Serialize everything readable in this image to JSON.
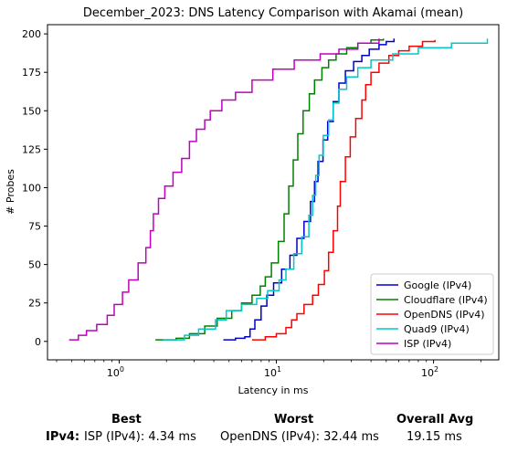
{
  "chart_data": {
    "type": "line",
    "title": "December_2023: DNS Latency Comparison with Akamai (mean)",
    "xlabel": "Latency in ms",
    "ylabel": "# Probes",
    "xscale": "log",
    "xlim": [
      0.35,
      260
    ],
    "ylim": [
      -12,
      206
    ],
    "xticks": [
      {
        "value": 1,
        "label": "10^0"
      },
      {
        "value": 10,
        "label": "10^1"
      },
      {
        "value": 100,
        "label": "10^2"
      }
    ],
    "yticks": [
      0,
      25,
      50,
      75,
      100,
      125,
      150,
      175,
      200
    ],
    "grid": false,
    "legend_position": "lower-right",
    "series": [
      {
        "name": "Google (IPv4)",
        "color": "#0000cc",
        "points": [
          [
            4.6,
            1
          ],
          [
            5.5,
            2
          ],
          [
            6.3,
            3
          ],
          [
            6.8,
            8
          ],
          [
            7.3,
            14
          ],
          [
            8.0,
            23
          ],
          [
            8.7,
            30
          ],
          [
            9.6,
            38
          ],
          [
            10.8,
            47
          ],
          [
            12.2,
            56
          ],
          [
            13.5,
            67
          ],
          [
            15.0,
            78
          ],
          [
            16.5,
            91
          ],
          [
            17.5,
            104
          ],
          [
            18.4,
            117
          ],
          [
            19.8,
            131
          ],
          [
            21.2,
            143
          ],
          [
            23.0,
            156
          ],
          [
            25.0,
            168
          ],
          [
            27.5,
            176
          ],
          [
            31,
            182
          ],
          [
            35,
            186
          ],
          [
            39,
            190
          ],
          [
            45,
            193
          ],
          [
            50,
            195
          ],
          [
            56,
            197
          ]
        ]
      },
      {
        "name": "Cloudflare (IPv4)",
        "color": "#008000",
        "points": [
          [
            1.7,
            1
          ],
          [
            2.3,
            2
          ],
          [
            2.8,
            5
          ],
          [
            3.5,
            10
          ],
          [
            4.2,
            15
          ],
          [
            5.2,
            20
          ],
          [
            6.0,
            25
          ],
          [
            7.0,
            30
          ],
          [
            7.9,
            36
          ],
          [
            8.5,
            42
          ],
          [
            9.3,
            51
          ],
          [
            10.3,
            65
          ],
          [
            11.2,
            83
          ],
          [
            12.0,
            101
          ],
          [
            12.8,
            118
          ],
          [
            13.7,
            135
          ],
          [
            14.8,
            150
          ],
          [
            16.2,
            161
          ],
          [
            17.5,
            170
          ],
          [
            19.5,
            178
          ],
          [
            21.5,
            183
          ],
          [
            24,
            187
          ],
          [
            28,
            191
          ],
          [
            33,
            194
          ],
          [
            40,
            196
          ],
          [
            48,
            197
          ]
        ]
      },
      {
        "name": "OpenDNS (IPv4)",
        "color": "#ff0000",
        "points": [
          [
            7.0,
            1
          ],
          [
            8.5,
            3
          ],
          [
            10.0,
            5
          ],
          [
            11.5,
            9
          ],
          [
            12.5,
            14
          ],
          [
            13.5,
            18
          ],
          [
            15,
            24
          ],
          [
            17,
            30
          ],
          [
            18.5,
            37
          ],
          [
            20.2,
            46
          ],
          [
            21.5,
            58
          ],
          [
            23.0,
            72
          ],
          [
            24.5,
            88
          ],
          [
            25.5,
            104
          ],
          [
            27.5,
            120
          ],
          [
            29.5,
            133
          ],
          [
            32,
            145
          ],
          [
            35,
            157
          ],
          [
            37,
            167
          ],
          [
            40,
            175
          ],
          [
            45,
            181
          ],
          [
            52,
            186
          ],
          [
            60,
            189
          ],
          [
            70,
            192
          ],
          [
            85,
            195
          ],
          [
            102,
            196
          ]
        ]
      },
      {
        "name": "Quad9 (IPv4)",
        "color": "#00c8c8",
        "points": [
          [
            1.9,
            1
          ],
          [
            2.6,
            4
          ],
          [
            3.2,
            8
          ],
          [
            4.1,
            14
          ],
          [
            4.8,
            20
          ],
          [
            6.0,
            24
          ],
          [
            7.5,
            28
          ],
          [
            8.8,
            33
          ],
          [
            10.4,
            40
          ],
          [
            11.5,
            47
          ],
          [
            12.9,
            57
          ],
          [
            14.5,
            68
          ],
          [
            16.1,
            82
          ],
          [
            17.0,
            95
          ],
          [
            17.8,
            108
          ],
          [
            18.7,
            121
          ],
          [
            19.9,
            134
          ],
          [
            21.5,
            144
          ],
          [
            23,
            155
          ],
          [
            25,
            164
          ],
          [
            28,
            172
          ],
          [
            33,
            178
          ],
          [
            40,
            183
          ],
          [
            55,
            187
          ],
          [
            80,
            191
          ],
          [
            130,
            194
          ],
          [
            220,
            197
          ]
        ]
      },
      {
        "name": "ISP (IPv4)",
        "color": "#c000c0",
        "points": [
          [
            0.48,
            1
          ],
          [
            0.55,
            4
          ],
          [
            0.62,
            7
          ],
          [
            0.72,
            11
          ],
          [
            0.84,
            17
          ],
          [
            0.93,
            24
          ],
          [
            1.05,
            32
          ],
          [
            1.15,
            40
          ],
          [
            1.32,
            51
          ],
          [
            1.48,
            61
          ],
          [
            1.58,
            72
          ],
          [
            1.65,
            83
          ],
          [
            1.78,
            93
          ],
          [
            1.95,
            101
          ],
          [
            2.2,
            110
          ],
          [
            2.5,
            119
          ],
          [
            2.8,
            130
          ],
          [
            3.1,
            138
          ],
          [
            3.5,
            144
          ],
          [
            3.8,
            150
          ],
          [
            4.5,
            157
          ],
          [
            5.5,
            162
          ],
          [
            7,
            170
          ],
          [
            9.5,
            177
          ],
          [
            13,
            183
          ],
          [
            19,
            187
          ],
          [
            25,
            190
          ],
          [
            33,
            194
          ],
          [
            45,
            197
          ]
        ]
      }
    ]
  },
  "summary": {
    "best_header": "Best",
    "worst_header": "Worst",
    "avg_header": "Overall Avg",
    "row_label": "IPv4:",
    "best_value": "ISP (IPv4): 4.34 ms",
    "worst_value": "OpenDNS (IPv4): 32.44 ms",
    "avg_value": "19.15 ms"
  }
}
